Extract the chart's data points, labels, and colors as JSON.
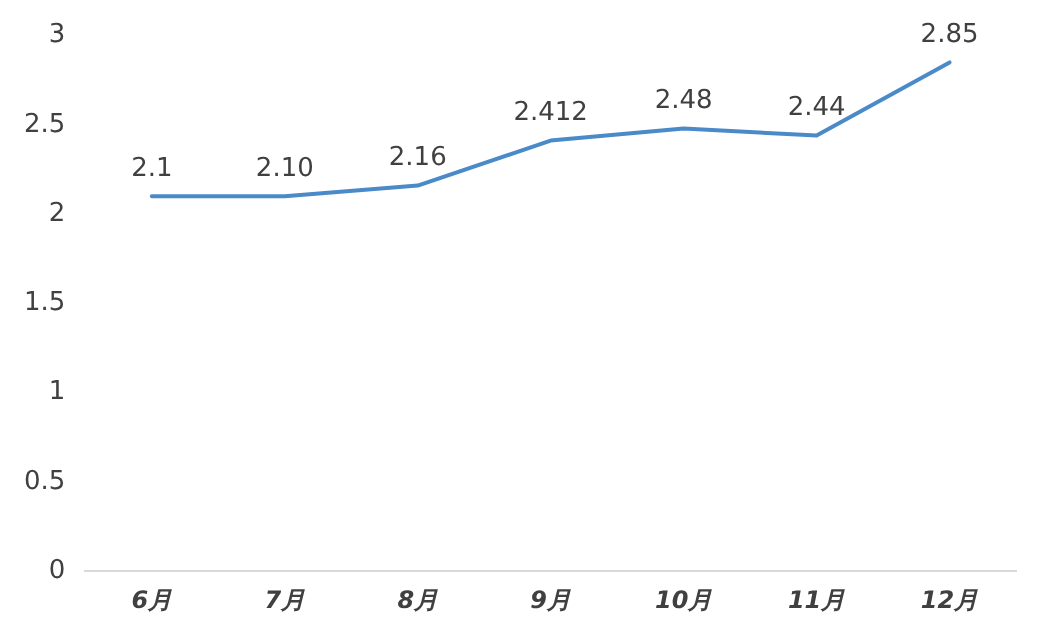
{
  "chart_data": {
    "type": "line",
    "categories": [
      "6月",
      "7月",
      "8月",
      "9月",
      "10月",
      "11月",
      "12月"
    ],
    "values": [
      2.1,
      2.1,
      2.16,
      2.412,
      2.48,
      2.44,
      2.85
    ],
    "value_labels": [
      "2.1",
      "2.10",
      "2.16",
      "2.412",
      "2.48",
      "2.44",
      "2.85"
    ],
    "color": "#4a8ac8",
    "ylim": [
      0,
      3
    ],
    "yticks": [
      0,
      0.5,
      1,
      1.5,
      2,
      2.5,
      3
    ],
    "marker": "none",
    "line_style": "solid",
    "grid": false,
    "legend": false
  }
}
